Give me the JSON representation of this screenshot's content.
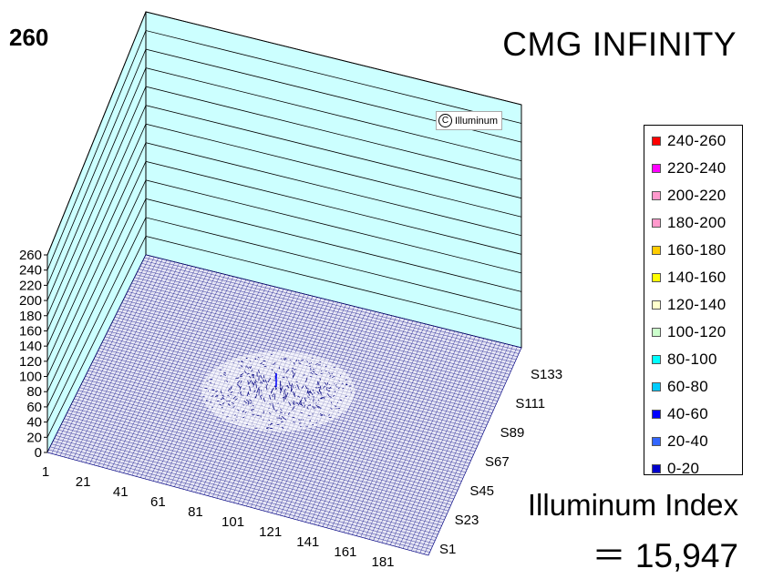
{
  "corner_value": "260",
  "title": "CMG INFINITY",
  "watermark": {
    "symbol": "C",
    "text": "Illuminum"
  },
  "index": {
    "label": "Illuminum Index",
    "value": "＝ 15,947"
  },
  "legend": [
    {
      "label": "240-260",
      "color": "#ff0000"
    },
    {
      "label": "220-240",
      "color": "#ff00ff"
    },
    {
      "label": "200-220",
      "color": "#ff99cc"
    },
    {
      "label": "180-200",
      "color": "#ff99cc"
    },
    {
      "label": "160-180",
      "color": "#ffcc00"
    },
    {
      "label": "140-160",
      "color": "#ffff00"
    },
    {
      "label": "120-140",
      "color": "#ffffcc"
    },
    {
      "label": "100-120",
      "color": "#ccffcc"
    },
    {
      "label": "80-100",
      "color": "#00ffff"
    },
    {
      "label": "60-80",
      "color": "#00ccff"
    },
    {
      "label": "40-60",
      "color": "#0000ff"
    },
    {
      "label": "20-40",
      "color": "#3366ff"
    },
    {
      "label": "0-20",
      "color": "#0000cc"
    }
  ],
  "chart_data": {
    "type": "surface-3d",
    "z_ticks": [
      "0",
      "20",
      "40",
      "60",
      "80",
      "100",
      "120",
      "140",
      "160",
      "180",
      "200",
      "220",
      "240",
      "260"
    ],
    "zlim": [
      0,
      260
    ],
    "x_ticks": [
      "1",
      "21",
      "41",
      "61",
      "81",
      "101",
      "121",
      "141",
      "161",
      "181"
    ],
    "y_ticks": [
      "S1",
      "S23",
      "S45",
      "S67",
      "S89",
      "S111",
      "S133"
    ],
    "wall_color": "#ccffff",
    "mesh_color": "#000080",
    "grid": true
  }
}
